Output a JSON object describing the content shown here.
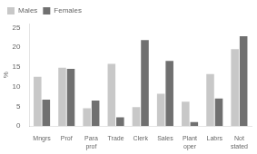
{
  "chart_data": {
    "type": "bar",
    "y_label": "%",
    "categories": [
      "Mngrs",
      "Prof",
      "Para\nprof",
      "Trade",
      "Clerk",
      "Sales",
      "Plant\noper",
      "Labrs",
      "Not\nstated"
    ],
    "series": [
      {
        "name": "Males",
        "color": "#c8c8c8",
        "values": [
          12.5,
          14.8,
          4.5,
          15.8,
          4.8,
          8.2,
          6.2,
          13.2,
          19.5
        ]
      },
      {
        "name": "Females",
        "color": "#707070",
        "values": [
          6.7,
          14.5,
          6.5,
          2.2,
          21.8,
          16.5,
          1.0,
          7.0,
          22.8
        ]
      }
    ],
    "ylim": [
      0,
      26
    ],
    "yticks": [
      0,
      5,
      10,
      15,
      20,
      25
    ],
    "grid": false,
    "legend": "upper left"
  }
}
